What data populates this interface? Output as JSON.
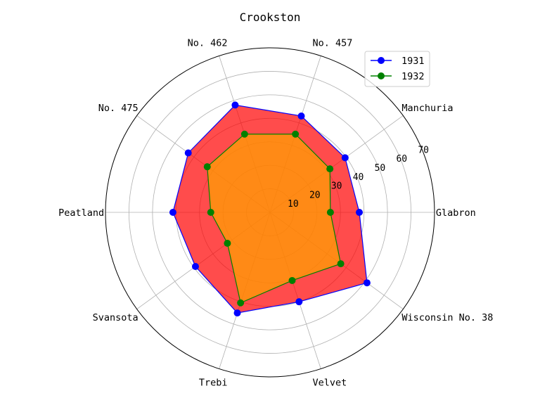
{
  "chart_data": {
    "type": "radar",
    "title": "Crookston",
    "categories": [
      "Glabron",
      "Manchuria",
      "No. 457",
      "No. 462",
      "No. 475",
      "Peatland",
      "Svansota",
      "Trebi",
      "Velvet",
      "Wisconsin No. 38"
    ],
    "series": [
      {
        "name": "1931",
        "values": [
          38.0,
          39.5,
          43.1,
          48.0,
          43.0,
          41.3,
          39.2,
          45.0,
          40.0,
          51.0
        ],
        "color": "#0000ff",
        "fill": "#ff0000"
      },
      {
        "name": "1932",
        "values": [
          25.7,
          31.5,
          35.0,
          35.0,
          33.0,
          25.2,
          22.4,
          40.5,
          30.5,
          37.2
        ],
        "color": "#008000",
        "fill": "#ffa500"
      }
    ],
    "rticks": [
      10,
      20,
      30,
      40,
      50,
      60,
      70
    ],
    "rlim": [
      0,
      70
    ],
    "legend_position": "top-right",
    "grid": true
  }
}
